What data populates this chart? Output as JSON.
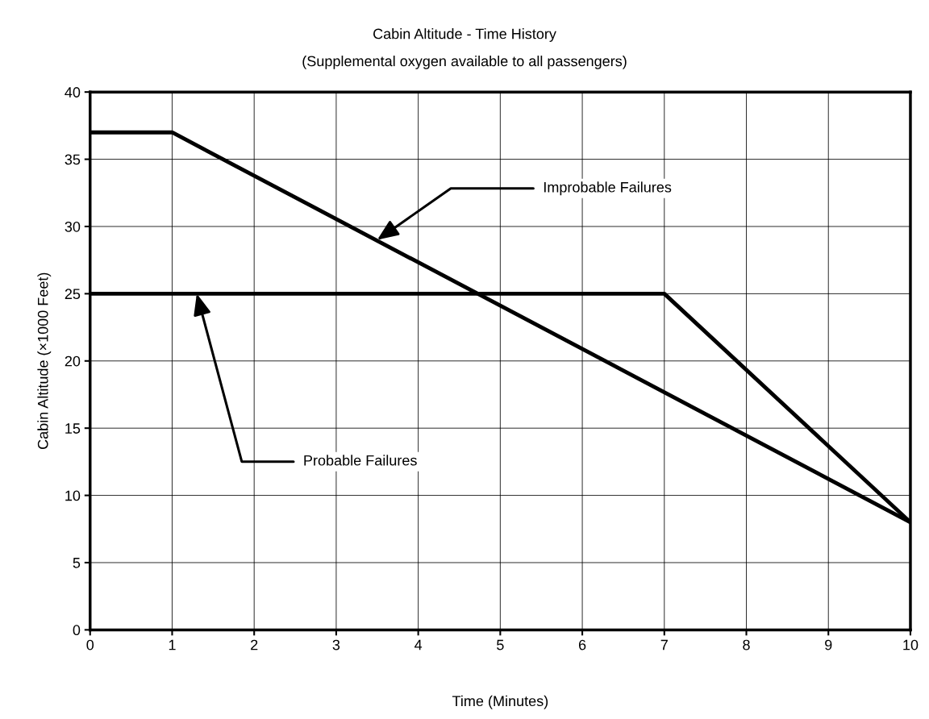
{
  "chart_data": {
    "type": "line",
    "title": "Cabin Altitude - Time History",
    "subtitle": "(Supplemental oxygen available to all passengers)",
    "xlabel": "Time (Minutes)",
    "ylabel": "Cabin Altitude (×1000 Feet)",
    "series": [
      {
        "x": [
          0,
          1,
          10
        ],
        "values": [
          37,
          37,
          8
        ],
        "color": "#000000"
      },
      {
        "x": [
          0,
          7,
          10
        ],
        "values": [
          25,
          25,
          8
        ],
        "color": "#000000"
      }
    ],
    "annotations": [
      {
        "text": "Improbable Failures",
        "x": 3.5,
        "y": 29
      },
      {
        "text": "Probable Failures",
        "x": 1.3,
        "y": 25
      }
    ],
    "xlim": [
      0,
      10
    ],
    "ylim": [
      0,
      40
    ],
    "xticks": [
      0,
      1,
      2,
      3,
      4,
      5,
      6,
      7,
      8,
      9,
      10
    ],
    "yticks": [
      0,
      5,
      10,
      15,
      20,
      25,
      30,
      35,
      40
    ],
    "grid": true,
    "marker": "none",
    "line_style": "solid"
  }
}
